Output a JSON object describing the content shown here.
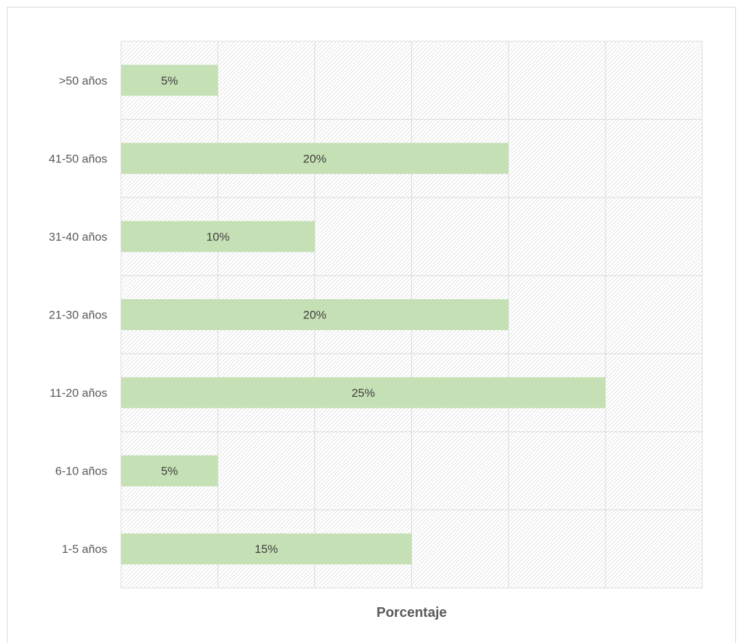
{
  "chart_data": {
    "type": "bar",
    "orientation": "horizontal",
    "categories": [
      ">50 años",
      "41-50 años",
      "31-40 años",
      "21-30 años",
      "11-20 años",
      "6-10 años",
      "1-5 años"
    ],
    "values": [
      5,
      20,
      10,
      20,
      25,
      5,
      15
    ],
    "data_labels": [
      "5%",
      "20%",
      "10%",
      "20%",
      "25%",
      "5%",
      "15%"
    ],
    "xlabel": "Porcentaje",
    "ylabel": "",
    "xlim": [
      0,
      30
    ],
    "grid": true,
    "legend": "none",
    "bar_color": "#c5e0b4",
    "grid_color": "#d9d9d9",
    "hatch_color": "#c8c8c8"
  }
}
